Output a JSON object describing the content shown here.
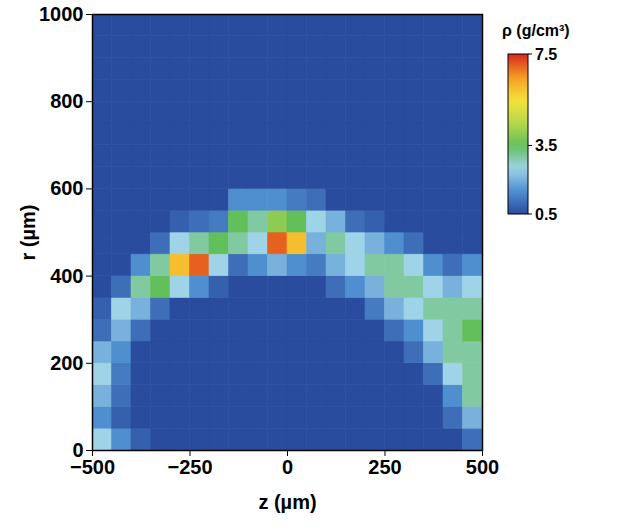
{
  "chart_data": {
    "type": "heatmap",
    "x_label": "z (µm)",
    "y_label": "r (µm)",
    "xlim": [
      -500,
      500
    ],
    "ylim": [
      0,
      1000
    ],
    "xticks": [
      -500,
      -250,
      0,
      250,
      500
    ],
    "yticks": [
      0,
      200,
      400,
      600,
      800,
      1000
    ],
    "colorbar": {
      "label": "ρ (g/cm³)",
      "lim": [
        0.5,
        7.5
      ],
      "ticks": [
        0.5,
        3.5,
        7.5
      ]
    },
    "cells": {
      "z": [
        -475,
        -425,
        -375,
        -325,
        -275,
        -225,
        -175,
        -125,
        -75,
        -25,
        25,
        75,
        125,
        175,
        225,
        275,
        325,
        375,
        425,
        475
      ],
      "r": [
        25,
        75,
        125,
        175,
        225,
        275,
        325,
        375,
        425,
        475,
        525,
        575,
        625,
        675,
        725,
        775,
        825,
        875,
        925,
        975
      ],
      "rho": [
        [
          2.5,
          1.5,
          0.8,
          0.5,
          0.5,
          0.5,
          0.5,
          0.5,
          0.5,
          0.5,
          0.5,
          0.5,
          0.5,
          0.5,
          0.5,
          0.5,
          0.5,
          0.5,
          0.5,
          1.0
        ],
        [
          1.5,
          0.8,
          0.5,
          0.5,
          0.5,
          0.5,
          0.5,
          0.5,
          0.5,
          0.5,
          0.5,
          0.5,
          0.5,
          0.5,
          0.5,
          0.5,
          0.5,
          0.5,
          1.0,
          2.0
        ],
        [
          2.0,
          1.0,
          0.5,
          0.5,
          0.5,
          0.5,
          0.5,
          0.5,
          0.5,
          0.5,
          0.5,
          0.5,
          0.5,
          0.5,
          0.5,
          0.5,
          0.5,
          0.5,
          1.5,
          3.0
        ],
        [
          2.5,
          1.2,
          0.5,
          0.5,
          0.5,
          0.5,
          0.5,
          0.5,
          0.5,
          0.5,
          0.5,
          0.5,
          0.5,
          0.5,
          0.5,
          0.5,
          0.5,
          1.0,
          2.5,
          3.0
        ],
        [
          2.0,
          1.5,
          0.5,
          0.5,
          0.5,
          0.5,
          0.5,
          0.5,
          0.5,
          0.5,
          0.5,
          0.5,
          0.5,
          0.5,
          0.5,
          0.5,
          1.0,
          2.0,
          3.0,
          3.0
        ],
        [
          1.0,
          2.0,
          1.0,
          0.5,
          0.5,
          0.5,
          0.5,
          0.5,
          0.5,
          0.5,
          0.5,
          0.5,
          0.5,
          0.5,
          0.5,
          1.0,
          1.5,
          2.5,
          3.0,
          3.5
        ],
        [
          0.8,
          2.5,
          2.0,
          1.0,
          0.5,
          0.5,
          0.5,
          0.5,
          0.5,
          0.5,
          0.5,
          0.5,
          0.5,
          0.5,
          1.2,
          2.0,
          2.5,
          3.0,
          3.0,
          3.0
        ],
        [
          0.5,
          1.0,
          3.0,
          3.5,
          2.5,
          1.5,
          0.8,
          0.5,
          0.5,
          0.5,
          0.5,
          0.5,
          1.0,
          1.5,
          2.0,
          3.0,
          3.0,
          2.5,
          2.0,
          2.5
        ],
        [
          0.5,
          0.5,
          1.5,
          3.0,
          6.0,
          7.0,
          2.5,
          1.0,
          1.5,
          2.0,
          1.5,
          1.2,
          2.0,
          2.5,
          3.0,
          3.0,
          2.5,
          1.5,
          1.0,
          1.5
        ],
        [
          0.5,
          0.5,
          0.5,
          1.0,
          2.5,
          3.0,
          3.5,
          3.0,
          2.5,
          7.0,
          6.0,
          2.0,
          3.0,
          2.5,
          2.0,
          1.5,
          1.0,
          0.5,
          0.5,
          0.5
        ],
        [
          0.5,
          0.5,
          0.5,
          0.5,
          0.8,
          1.0,
          1.2,
          3.5,
          3.0,
          4.0,
          3.5,
          2.5,
          2.0,
          1.0,
          0.8,
          0.5,
          0.5,
          0.5,
          0.5,
          0.5
        ],
        [
          0.5,
          0.5,
          0.5,
          0.5,
          0.5,
          0.5,
          0.5,
          1.5,
          1.5,
          1.5,
          1.2,
          1.0,
          0.5,
          0.5,
          0.5,
          0.5,
          0.5,
          0.5,
          0.5,
          0.5
        ],
        [
          0.5,
          0.5,
          0.5,
          0.5,
          0.5,
          0.5,
          0.5,
          0.5,
          0.5,
          0.5,
          0.5,
          0.5,
          0.5,
          0.5,
          0.5,
          0.5,
          0.5,
          0.5,
          0.5,
          0.5
        ],
        [
          0.5,
          0.5,
          0.5,
          0.5,
          0.5,
          0.5,
          0.5,
          0.5,
          0.5,
          0.5,
          0.5,
          0.5,
          0.5,
          0.5,
          0.5,
          0.5,
          0.5,
          0.5,
          0.5,
          0.5
        ],
        [
          0.5,
          0.5,
          0.5,
          0.5,
          0.5,
          0.5,
          0.5,
          0.5,
          0.5,
          0.5,
          0.5,
          0.5,
          0.5,
          0.5,
          0.5,
          0.5,
          0.5,
          0.5,
          0.5,
          0.5
        ],
        [
          0.5,
          0.5,
          0.5,
          0.5,
          0.5,
          0.5,
          0.5,
          0.5,
          0.5,
          0.5,
          0.5,
          0.5,
          0.5,
          0.5,
          0.5,
          0.5,
          0.5,
          0.5,
          0.5,
          0.5
        ],
        [
          0.5,
          0.5,
          0.5,
          0.5,
          0.5,
          0.5,
          0.5,
          0.5,
          0.5,
          0.5,
          0.5,
          0.5,
          0.5,
          0.5,
          0.5,
          0.5,
          0.5,
          0.5,
          0.5,
          0.5
        ],
        [
          0.5,
          0.5,
          0.5,
          0.5,
          0.5,
          0.5,
          0.5,
          0.5,
          0.5,
          0.5,
          0.5,
          0.5,
          0.5,
          0.5,
          0.5,
          0.5,
          0.5,
          0.5,
          0.5,
          0.5
        ],
        [
          0.5,
          0.5,
          0.5,
          0.5,
          0.5,
          0.5,
          0.5,
          0.5,
          0.5,
          0.5,
          0.5,
          0.5,
          0.5,
          0.5,
          0.5,
          0.5,
          0.5,
          0.5,
          0.5,
          0.5
        ],
        [
          0.5,
          0.5,
          0.5,
          0.5,
          0.5,
          0.5,
          0.5,
          0.5,
          0.5,
          0.5,
          0.5,
          0.5,
          0.5,
          0.5,
          0.5,
          0.5,
          0.5,
          0.5,
          0.5,
          0.5
        ]
      ]
    }
  }
}
